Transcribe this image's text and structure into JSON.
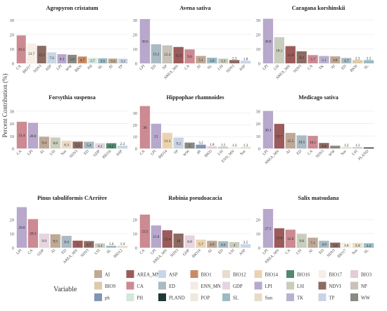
{
  "figure": {
    "ylabel": "Percent Contribution (%)",
    "legend_title": "Variable"
  },
  "legend": [
    {
      "name": "AI",
      "color": "#BFA896"
    },
    {
      "name": "AREA_MN",
      "color": "#9C5B5B"
    },
    {
      "name": "ASP",
      "color": "#C9D6E6"
    },
    {
      "name": "BIO1",
      "color": "#C98A66"
    },
    {
      "name": "BIO12",
      "color": "#E8DCCB"
    },
    {
      "name": "BIO14",
      "color": "#EBD3B0"
    },
    {
      "name": "BIO16",
      "color": "#4F8A70"
    },
    {
      "name": "BIO17",
      "color": "#F7EFE6"
    },
    {
      "name": "BIO3",
      "color": "#E3CCD6"
    },
    {
      "name": "BIO9",
      "color": "#DCCBA8"
    },
    {
      "name": "CA",
      "color": "#CC8A93"
    },
    {
      "name": "ED",
      "color": "#A9BAC3"
    },
    {
      "name": "ENN_MN",
      "color": "#F4ECE4"
    },
    {
      "name": "GDP",
      "color": "#E6D5E0"
    },
    {
      "name": "LPI",
      "color": "#B7A8CC"
    },
    {
      "name": "LSI",
      "color": "#C9CDBE"
    },
    {
      "name": "NDVI",
      "color": "#8C6B63"
    },
    {
      "name": "NP",
      "color": "#C8C2B8"
    },
    {
      "name": "ph",
      "color": "#8394B5"
    },
    {
      "name": "PH",
      "color": "#D4E6DE"
    },
    {
      "name": "PLAND",
      "color": "#1E3A33"
    },
    {
      "name": "POP",
      "color": "#F0E8DC"
    },
    {
      "name": "SL",
      "color": "#9BBBC3"
    },
    {
      "name": "Sun",
      "color": "#E8DCC6"
    },
    {
      "name": "TK",
      "color": "#B9B2CF"
    },
    {
      "name": "TP",
      "color": "#C9D3E3"
    },
    {
      "name": "WW",
      "color": "#8A8A84"
    }
  ],
  "chart_data": [
    {
      "type": "bar",
      "title": "Agropyron cristatum",
      "ylim": [
        0,
        35
      ],
      "yticks": [
        0,
        10,
        20,
        30
      ],
      "categories": [
        "CA",
        "BIO17",
        "NDVI",
        "ASP",
        "LPI",
        "WW",
        "BIO1",
        "PH",
        "SL",
        "AI",
        "TP"
      ],
      "values": [
        19.3,
        13.7,
        12.1,
        7.6,
        6.3,
        5.9,
        4.7,
        3.7,
        3.5,
        3.3,
        3.2
      ],
      "labels": [
        "19.3",
        "13.7",
        "12.1",
        "7.6",
        "6.3",
        "5.9",
        "4.7",
        "3.7",
        "3.5",
        "3.3",
        "3.2"
      ]
    },
    {
      "type": "bar",
      "title": "Avena sativa",
      "ylim": [
        0,
        35
      ],
      "yticks": [
        0,
        10,
        20,
        30
      ],
      "categories": [
        "LPI",
        "ED",
        "NP",
        "AREA_MN",
        "CA",
        "AI",
        "SL",
        "LSI",
        "NDVI",
        "ASP"
      ],
      "values": [
        30.6,
        13.2,
        12.4,
        11.3,
        9.6,
        5.1,
        3.9,
        3.3,
        2.3,
        1.8
      ],
      "labels": [
        "30.6",
        "13.2",
        "12.4",
        "11.3",
        "9.6",
        "5.1",
        "3.9",
        "3.3",
        "2.3",
        "1.8"
      ]
    },
    {
      "type": "bar",
      "title": "Caragana korshinskii",
      "ylim": [
        0,
        35
      ],
      "yticks": [
        0,
        10,
        20,
        30
      ],
      "categories": [
        "LPI",
        "LSI",
        "AREA_MN",
        "NDVI",
        "CA",
        "TK",
        "AI",
        "ED",
        "BIO9",
        "SL"
      ],
      "values": [
        30.8,
        18.1,
        11.9,
        8.3,
        5.7,
        5.1,
        4.8,
        3.7,
        2.3,
        2.2
      ],
      "labels": [
        "30.8",
        "18.1",
        "11.9",
        "8.3",
        "5.7",
        "5.1",
        "4.8",
        "3.7",
        "2.3",
        "2.2"
      ]
    },
    {
      "type": "bar",
      "title": "Forsythia suspensa",
      "ylim": [
        0,
        35
      ],
      "yticks": [
        0,
        10,
        20,
        30
      ],
      "categories": [
        "CA",
        "LPI",
        "AI",
        "LSI",
        "Sun",
        "NDVI",
        "ED",
        "GDP",
        "BIO16",
        "ASP"
      ],
      "values": [
        21.4,
        20.6,
        9.4,
        8.8,
        6.3,
        5.5,
        5.4,
        4.2,
        4.2,
        2.3
      ],
      "labels": [
        "21.4",
        "20.6",
        "9.4",
        "8.8",
        "6.3",
        "5.5",
        "5.4",
        "4.2",
        "4.2",
        "2.3"
      ]
    },
    {
      "type": "bar",
      "title": "Hippophae rhamnoides",
      "ylim": [
        0,
        37
      ],
      "yticks": [
        0,
        10,
        20,
        30
      ],
      "categories": [
        "CA",
        "LPI",
        "BIO14",
        "TP",
        "WW",
        "ph",
        "BIO3",
        "LSI",
        "ENN_MN",
        "Sun"
      ],
      "values": [
        36,
        21,
        13.3,
        9.2,
        5,
        3.2,
        1.8,
        1.5,
        1.3,
        1.3
      ],
      "labels": [
        "36",
        "21",
        "13.3",
        "9.2",
        "5",
        "3.2",
        "1.8",
        "1.5",
        "1.3",
        "1.3"
      ]
    },
    {
      "type": "bar",
      "title": "Medicago sativa",
      "ylim": [
        0,
        35
      ],
      "yticks": [
        0,
        10,
        20,
        30
      ],
      "categories": [
        "LPI",
        "AREA_MN",
        "AI",
        "ED",
        "CA",
        "NDVI",
        "WW",
        "Sun",
        "LSI",
        "PLAND"
      ],
      "values": [
        30.1,
        19.7,
        12.5,
        10.5,
        10.1,
        4.4,
        2.2,
        1.2,
        1.1,
        0.8
      ],
      "labels": [
        "30.1",
        "19.7",
        "12.5",
        "10.5",
        "10.1",
        "4.4",
        "",
        "1.2",
        "1.1",
        ""
      ]
    },
    {
      "type": "bar",
      "title": "Pinus tabuliformis CArrière",
      "ylim": [
        0,
        31
      ],
      "yticks": [
        0,
        10,
        20
      ],
      "categories": [
        "LPI",
        "CA",
        "GDP",
        "AI",
        "ED",
        "AREA_MN",
        "NDVI",
        "LSI",
        "SL",
        "BIO12"
      ],
      "values": [
        28.8,
        20.3,
        9.9,
        9.5,
        8.4,
        5,
        4.7,
        3.1,
        1.4,
        1.4
      ],
      "labels": [
        "28.8",
        "20.3",
        "9.9",
        "9.5",
        "8.4",
        "5",
        "4.7",
        "3.1",
        "1.4",
        "1.4"
      ]
    },
    {
      "type": "bar",
      "title": "Robinia pseudoacacia",
      "ylim": [
        0,
        31
      ],
      "yticks": [
        0,
        10,
        20
      ],
      "categories": [
        "CA",
        "LPI",
        "AREA_MN",
        "NDVI",
        "GDP",
        "BIO14",
        "AI",
        "ED",
        "LSI",
        "ASP"
      ],
      "values": [
        23.5,
        15.8,
        12.4,
        10,
        8.8,
        5.7,
        4.9,
        4.6,
        4,
        2.5
      ],
      "labels": [
        "23.5",
        "15.8",
        "12.4",
        "10",
        "8.8",
        "5.7",
        "4.9",
        "4.6",
        "4",
        "2.5"
      ]
    },
    {
      "type": "bar",
      "title": "Salix matsudana",
      "ylim": [
        0,
        31
      ],
      "yticks": [
        0,
        10,
        20
      ],
      "categories": [
        "LPI",
        "AREA_MN",
        "CA",
        "LSI",
        "AI",
        "ED",
        "NDVI",
        "BIO17",
        "Sun",
        "SL"
      ],
      "values": [
        27.5,
        13.8,
        12.8,
        9.8,
        7.1,
        4.9,
        3.6,
        3.6,
        3.4,
        3.2
      ],
      "labels": [
        "27.5",
        "13.8",
        "12.8",
        "9.8",
        "7.1",
        "4.9",
        "3.6",
        "3.6",
        "3.4",
        "3.2"
      ]
    }
  ]
}
